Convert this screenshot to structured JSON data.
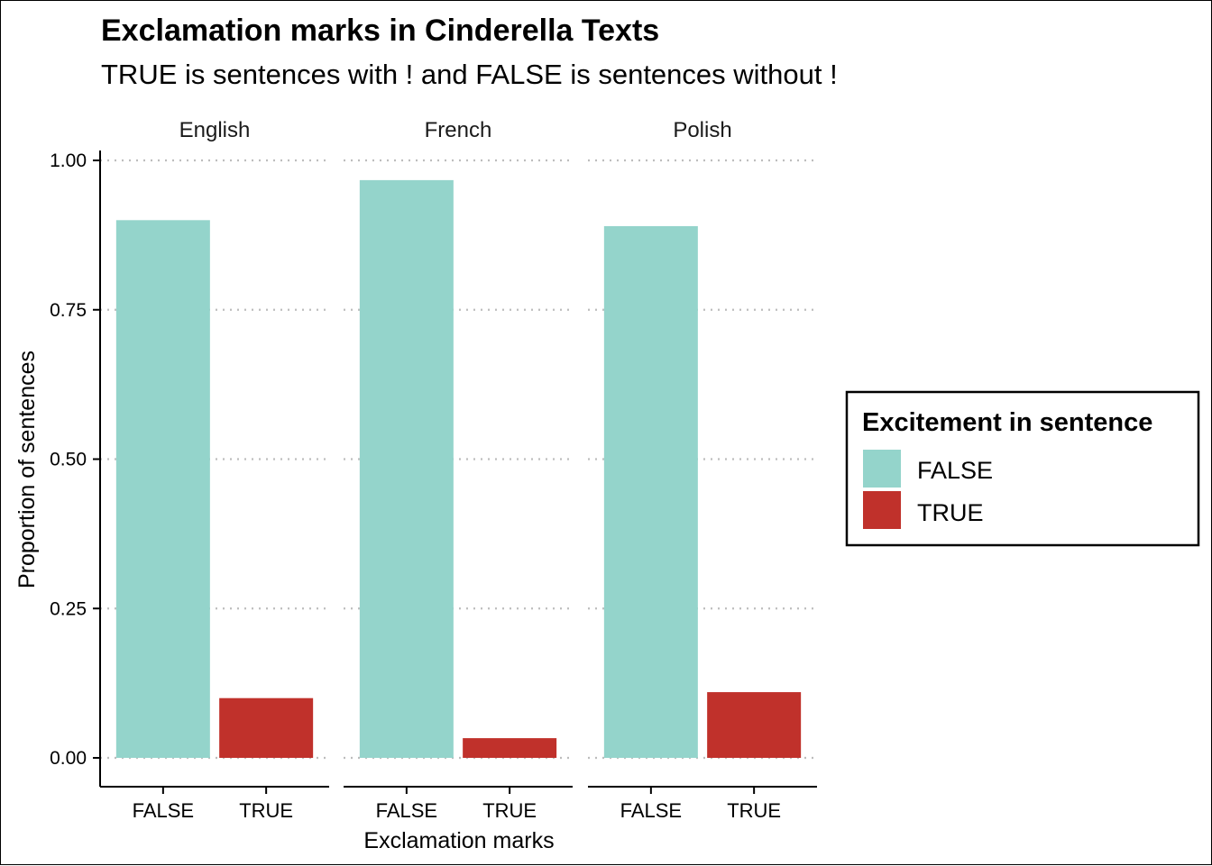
{
  "chart_data": {
    "type": "bar",
    "title": "Exclamation marks in Cinderella Texts",
    "subtitle": "TRUE is sentences with ! and FALSE is sentences without !",
    "xlabel": "Exclamation marks",
    "ylabel": "Proportion of sentences",
    "ylim": [
      0,
      1
    ],
    "y_ticks": [
      "0.00",
      "0.25",
      "0.50",
      "0.75",
      "1.00"
    ],
    "y_tick_values": [
      0,
      0.25,
      0.5,
      0.75,
      1
    ],
    "categories": [
      "FALSE",
      "TRUE"
    ],
    "grid": "horizontal dotted",
    "legend_placement": "right",
    "facets": [
      {
        "name": "English",
        "values": [
          0.9,
          0.1
        ]
      },
      {
        "name": "French",
        "values": [
          0.967,
          0.033
        ]
      },
      {
        "name": "Polish",
        "values": [
          0.89,
          0.11
        ]
      }
    ],
    "legend": {
      "title": "Excitement in sentence",
      "entries": [
        {
          "label": "FALSE",
          "color": "#94D4CB"
        },
        {
          "label": "TRUE",
          "color": "#C0312B"
        }
      ]
    }
  }
}
